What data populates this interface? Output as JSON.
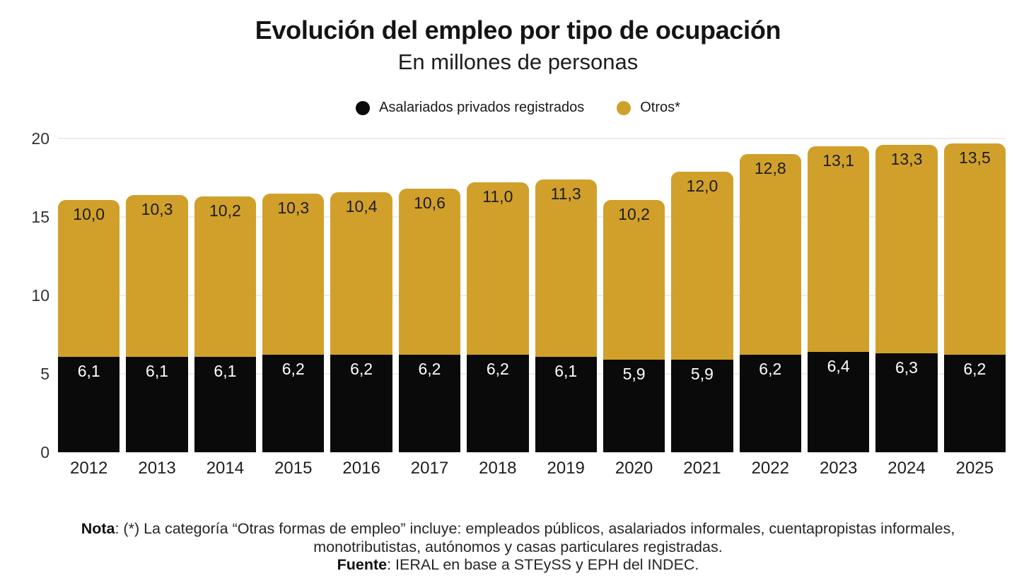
{
  "header": {
    "title": "Evolución del empleo por tipo de ocupación",
    "subtitle": "En millones de personas"
  },
  "legend": [
    {
      "label": "Asalariados privados registrados",
      "color": "#0a0a0a"
    },
    {
      "label": "Otros*",
      "color": "#d1a02b"
    }
  ],
  "chart_data": {
    "type": "bar",
    "stacked": true,
    "title": "Evolución del empleo por tipo de ocupación",
    "subtitle": "En millones de personas",
    "categories": [
      "2012",
      "2013",
      "2014",
      "2015",
      "2016",
      "2017",
      "2018",
      "2019",
      "2020",
      "2021",
      "2022",
      "2023",
      "2024",
      "2025"
    ],
    "series": [
      {
        "name": "Asalariados privados registrados",
        "color": "#0a0a0a",
        "values": [
          6.1,
          6.1,
          6.1,
          6.2,
          6.2,
          6.2,
          6.2,
          6.1,
          5.9,
          5.9,
          6.2,
          6.4,
          6.3,
          6.2
        ]
      },
      {
        "name": "Otros*",
        "color": "#d1a02b",
        "values": [
          10.0,
          10.3,
          10.2,
          10.3,
          10.4,
          10.6,
          11.0,
          11.3,
          10.2,
          12.0,
          12.8,
          13.1,
          13.3,
          13.5
        ]
      }
    ],
    "ylim": [
      0,
      20
    ],
    "yticks": [
      0,
      5,
      10,
      15,
      20
    ],
    "decimal_separator": ",",
    "grid": true,
    "legend_position": "top",
    "value_labels": "inside"
  },
  "note": {
    "nota_label": "Nota",
    "nota_text": ": (*) La categoría “Otras formas de empleo” incluye: empleados públicos, asalariados informales, cuentapropistas informales, monotributistas, autónomos y casas particulares registradas.",
    "fuente_label": "Fuente",
    "fuente_text": ": IERAL en base a STEySS y EPH del INDEC."
  }
}
